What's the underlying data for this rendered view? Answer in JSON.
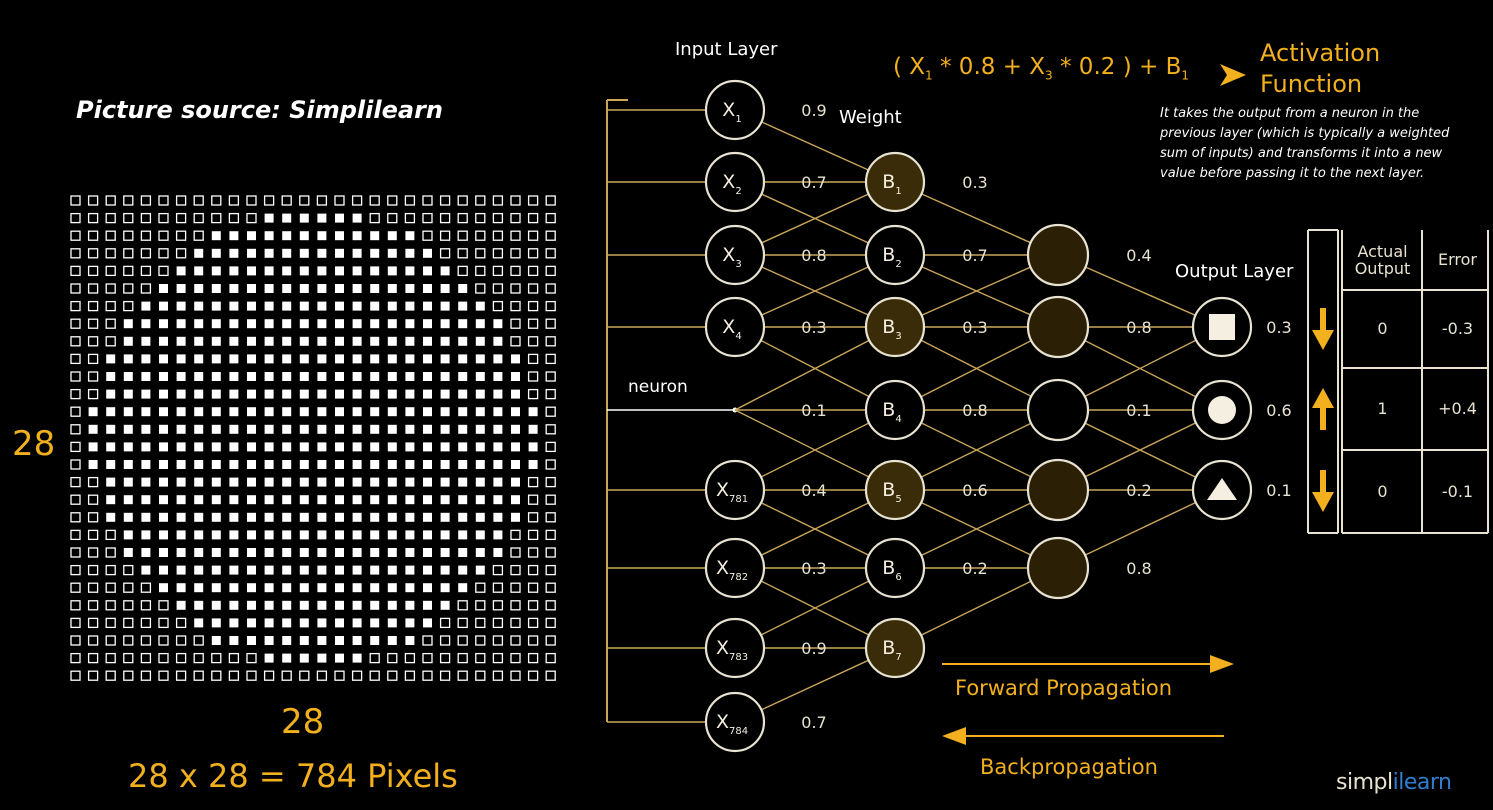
{
  "source_caption": "Picture source: Simplilearn",
  "grid": {
    "width_label": "28",
    "height_label": "28",
    "caption": "28 x 28 = 784 Pixels"
  },
  "headers": {
    "input_layer": "Input Layer",
    "weight": "Weight",
    "output_layer": "Output Layer",
    "neuron": "neuron"
  },
  "inputs": [
    {
      "sym": "X",
      "sub": "1",
      "weight": "0.9"
    },
    {
      "sym": "X",
      "sub": "2",
      "weight": "0.7"
    },
    {
      "sym": "X",
      "sub": "3",
      "weight": "0.8"
    },
    {
      "sym": "X",
      "sub": "4",
      "weight": "0.3"
    },
    {
      "sym": "",
      "sub": "",
      "weight": "0.1"
    },
    {
      "sym": "X",
      "sub": "781",
      "weight": "0.4"
    },
    {
      "sym": "X",
      "sub": "782",
      "weight": "0.3"
    },
    {
      "sym": "X",
      "sub": "783",
      "weight": "0.9"
    },
    {
      "sym": "X",
      "sub": "784",
      "weight": "0.7"
    }
  ],
  "bias_nodes": [
    {
      "sym": "B",
      "sub": "1",
      "weight": "0.3"
    },
    {
      "sym": "B",
      "sub": "2",
      "weight": "0.7"
    },
    {
      "sym": "B",
      "sub": "3",
      "weight": "0.3"
    },
    {
      "sym": "B",
      "sub": "4",
      "weight": "0.8"
    },
    {
      "sym": "B",
      "sub": "5",
      "weight": "0.6"
    },
    {
      "sym": "B",
      "sub": "6",
      "weight": "0.2"
    },
    {
      "sym": "B",
      "sub": "7",
      "weight": ""
    }
  ],
  "hidden_weights": [
    "0.4",
    "0.8",
    "0.1",
    "0.2",
    "0.8"
  ],
  "outputs": [
    {
      "shape": "square",
      "value": "0.3",
      "arrow": "down"
    },
    {
      "shape": "circle",
      "value": "0.6",
      "arrow": "up"
    },
    {
      "shape": "triangle",
      "value": "0.1",
      "arrow": "down"
    }
  ],
  "formula": {
    "open": "( X",
    "s1": "1",
    "m1": " * 0.8 + X",
    "s2": "3",
    "m2": " * 0.2 ) + B",
    "s3": "1"
  },
  "activation": {
    "title": "Activation Function",
    "description": "It takes the output from a neuron in the previous layer (which is typically a weighted sum of inputs) and transforms it into a new value before passing it to the next layer."
  },
  "error_table": {
    "headers": [
      "Actual Output",
      "Error"
    ],
    "rows": [
      [
        "0",
        "-0.3"
      ],
      [
        "1",
        "+0.4"
      ],
      [
        "0",
        "-0.1"
      ]
    ]
  },
  "propagation": {
    "forward": "Forward Propagation",
    "backward": "Backpropagation"
  },
  "logo": {
    "part1": "simpl",
    "part2": "i",
    "part3": "learn"
  },
  "colors": {
    "accent": "#f2b01e",
    "line": "#c9a55a",
    "node_border": "#e8e2d0",
    "background": "#000000",
    "logo_blue": "#2f7fd0"
  }
}
